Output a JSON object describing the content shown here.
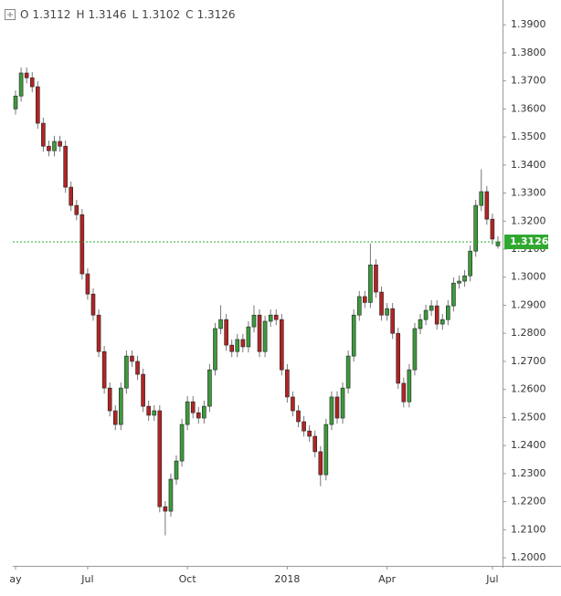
{
  "chart_data": {
    "type": "candlestick",
    "ohlc_labels": [
      "O",
      "H",
      "L",
      "C"
    ],
    "categories": [
      "ay",
      null,
      null,
      null,
      null,
      null,
      null,
      null,
      null,
      null,
      null,
      null,
      null,
      "Jul",
      null,
      null,
      null,
      null,
      null,
      null,
      null,
      null,
      null,
      null,
      null,
      null,
      null,
      null,
      null,
      null,
      null,
      "Oct",
      null,
      null,
      null,
      null,
      null,
      null,
      null,
      null,
      null,
      null,
      null,
      null,
      null,
      null,
      null,
      null,
      null,
      "2018",
      null,
      null,
      null,
      null,
      null,
      null,
      null,
      null,
      null,
      null,
      null,
      null,
      null,
      null,
      null,
      null,
      null,
      "Apr",
      null,
      null,
      null,
      null,
      null,
      null,
      null,
      null,
      null,
      null,
      null,
      null,
      null,
      null,
      null,
      null,
      null,
      null,
      "Jul",
      null
    ],
    "open": [
      1.36,
      1.3646,
      1.3728,
      1.3711,
      1.3679,
      1.3549,
      1.3467,
      1.3451,
      1.3484,
      1.3467,
      1.3321,
      1.3256,
      1.3223,
      1.3012,
      1.294,
      1.2865,
      1.2735,
      1.2605,
      1.2524,
      1.2475,
      1.2605,
      1.2719,
      1.27,
      1.2654,
      1.254,
      1.2508,
      1.2524,
      1.2182,
      1.2166,
      1.228,
      1.2345,
      1.2475,
      1.2556,
      1.2517,
      1.2498,
      1.254,
      1.267,
      1.2817,
      1.2849,
      1.2758,
      1.2735,
      1.2778,
      1.2752,
      1.2823,
      1.2865,
      1.2735,
      1.2843,
      1.2865,
      1.2849,
      1.267,
      1.2573,
      1.2524,
      1.2485,
      1.2452,
      1.2433,
      1.2378,
      1.2296,
      1.2475,
      1.2573,
      1.2498,
      1.2605,
      1.2719,
      1.2865,
      1.2931,
      1.291,
      1.3044,
      1.2947,
      1.2865,
      1.2888,
      1.28,
      1.2622,
      1.2556,
      1.267,
      1.2817,
      1.2849,
      1.2882,
      1.2898,
      1.2833,
      1.2849,
      1.2898,
      1.2979,
      1.2986,
      1.3005,
      1.3093,
      1.3256,
      1.3305,
      1.3207,
      1.3112
    ],
    "high": [
      1.3666,
      1.3748,
      1.3748,
      1.3731,
      1.3699,
      1.3569,
      1.3487,
      1.3504,
      1.3504,
      1.3487,
      1.3341,
      1.3276,
      1.3243,
      1.3032,
      1.296,
      1.2885,
      1.2755,
      1.2625,
      1.2544,
      1.2625,
      1.2739,
      1.2739,
      1.272,
      1.2674,
      1.256,
      1.2544,
      1.2544,
      1.2202,
      1.23,
      1.2365,
      1.2495,
      1.2576,
      1.2576,
      1.2537,
      1.256,
      1.269,
      1.2837,
      1.29,
      1.2869,
      1.2778,
      1.2798,
      1.2798,
      1.2843,
      1.29,
      1.2885,
      1.2863,
      1.2885,
      1.2885,
      1.2869,
      1.269,
      1.2593,
      1.2544,
      1.2505,
      1.2472,
      1.2453,
      1.2398,
      1.2495,
      1.2593,
      1.2593,
      1.2625,
      1.2739,
      1.2885,
      1.2951,
      1.2951,
      1.312,
      1.3064,
      1.2967,
      1.2908,
      1.2908,
      1.282,
      1.2642,
      1.269,
      1.2837,
      1.2869,
      1.2902,
      1.2918,
      1.2918,
      1.2869,
      1.2918,
      1.2999,
      1.3006,
      1.3025,
      1.3113,
      1.3276,
      1.3385,
      1.3325,
      1.3227,
      1.3146
    ],
    "low": [
      1.358,
      1.3626,
      1.3691,
      1.3659,
      1.3529,
      1.3447,
      1.3431,
      1.3431,
      1.3447,
      1.3301,
      1.3236,
      1.3203,
      1.2992,
      1.292,
      1.2845,
      1.2715,
      1.2585,
      1.2504,
      1.2455,
      1.2455,
      1.2585,
      1.268,
      1.2634,
      1.252,
      1.2488,
      1.2488,
      1.2162,
      1.208,
      1.2146,
      1.226,
      1.2325,
      1.2455,
      1.2497,
      1.2478,
      1.2478,
      1.252,
      1.265,
      1.2797,
      1.2738,
      1.2715,
      1.2715,
      1.2732,
      1.2732,
      1.2803,
      1.2715,
      1.2715,
      1.2823,
      1.2829,
      1.265,
      1.2553,
      1.2504,
      1.2465,
      1.2432,
      1.2413,
      1.2358,
      1.2255,
      1.2276,
      1.2455,
      1.2478,
      1.2478,
      1.2585,
      1.2699,
      1.2845,
      1.289,
      1.289,
      1.2927,
      1.2845,
      1.2845,
      1.278,
      1.2602,
      1.2536,
      1.2536,
      1.265,
      1.2797,
      1.2829,
      1.2862,
      1.2813,
      1.2813,
      1.2829,
      1.2878,
      1.2959,
      1.2966,
      1.2985,
      1.3073,
      1.3236,
      1.3187,
      1.3116,
      1.3102
    ],
    "close": [
      1.3646,
      1.3728,
      1.3711,
      1.3679,
      1.3549,
      1.3467,
      1.3451,
      1.3484,
      1.3467,
      1.3321,
      1.3256,
      1.3223,
      1.3012,
      1.294,
      1.2865,
      1.2735,
      1.2605,
      1.2524,
      1.2475,
      1.2605,
      1.2719,
      1.27,
      1.2654,
      1.254,
      1.2508,
      1.2524,
      1.2182,
      1.2166,
      1.228,
      1.2345,
      1.2475,
      1.2556,
      1.2517,
      1.2498,
      1.254,
      1.267,
      1.2817,
      1.2849,
      1.2758,
      1.2735,
      1.2778,
      1.2752,
      1.2823,
      1.2865,
      1.2735,
      1.2843,
      1.2865,
      1.2849,
      1.267,
      1.2573,
      1.2524,
      1.2485,
      1.2452,
      1.2433,
      1.2378,
      1.2296,
      1.2475,
      1.2573,
      1.2498,
      1.2605,
      1.2719,
      1.2865,
      1.2931,
      1.291,
      1.3044,
      1.2947,
      1.2865,
      1.2888,
      1.28,
      1.2622,
      1.2556,
      1.267,
      1.2817,
      1.2849,
      1.2882,
      1.2898,
      1.2833,
      1.2849,
      1.2898,
      1.2979,
      1.2986,
      1.3005,
      1.3093,
      1.3256,
      1.3305,
      1.3207,
      1.3136,
      1.3126
    ],
    "up_color": "#3c9a3c",
    "down_color": "#b22424",
    "last_price_color": "#2fa82f",
    "ylim": [
      1.1971,
      1.3972
    ],
    "yticks": [
      {
        "value": 1.2,
        "label": "1.2000"
      },
      {
        "value": 1.21,
        "label": "1.2100"
      },
      {
        "value": 1.22,
        "label": "1.2200"
      },
      {
        "value": 1.23,
        "label": "1.2300"
      },
      {
        "value": 1.24,
        "label": "1.2400"
      },
      {
        "value": 1.25,
        "label": "1.2500"
      },
      {
        "value": 1.26,
        "label": "1.2600"
      },
      {
        "value": 1.27,
        "label": "1.2700"
      },
      {
        "value": 1.28,
        "label": "1.2800"
      },
      {
        "value": 1.29,
        "label": "1.2900"
      },
      {
        "value": 1.3,
        "label": "1.3000"
      },
      {
        "value": 1.31,
        "label": "1.3100"
      },
      {
        "value": 1.32,
        "label": "1.3200"
      },
      {
        "value": 1.33,
        "label": "1.3300"
      },
      {
        "value": 1.34,
        "label": "1.3400"
      },
      {
        "value": 1.35,
        "label": "1.3500"
      },
      {
        "value": 1.36,
        "label": "1.3600"
      },
      {
        "value": 1.37,
        "label": "1.3700"
      },
      {
        "value": 1.38,
        "label": "1.3800"
      },
      {
        "value": 1.39,
        "label": "1.3900"
      }
    ],
    "grid": false
  }
}
